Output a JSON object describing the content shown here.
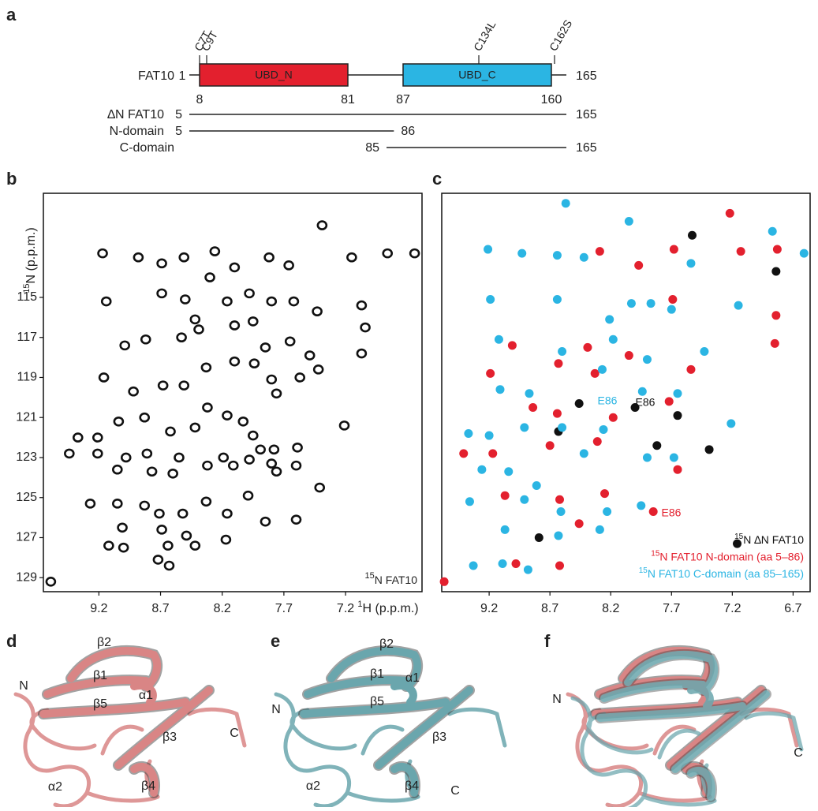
{
  "panel_labels": [
    "a",
    "b",
    "c",
    "d",
    "e",
    "f"
  ],
  "domain_map": {
    "protein": "FAT10",
    "start": 1,
    "end": 165,
    "mutations": [
      "C7T",
      "C9T",
      "C134L",
      "C162S"
    ],
    "domains": [
      {
        "name": "UBD_N",
        "start": 8,
        "end": 81,
        "color": "#e3202e"
      },
      {
        "name": "UBD_C",
        "start": 87,
        "end": 160,
        "color": "#2bb5e3"
      }
    ],
    "constructs": [
      {
        "name": "∆N FAT10",
        "start": 5,
        "end": 165
      },
      {
        "name": "N-domain",
        "start": 5,
        "end": 86
      },
      {
        "name": "C-domain",
        "start": 85,
        "end": 165
      }
    ]
  },
  "chart_data": [
    {
      "type": "scatter",
      "color": "#111111",
      "annotation": {
        "sup": "15",
        "text": "N FAT10"
      },
      "x_label": {
        "sup": "1",
        "text": "H (p.p.m.)"
      },
      "y_label": {
        "sup": "15",
        "text": "N (p.p.m.)"
      },
      "xlim": [
        9.65,
        6.58
      ],
      "ylim": [
        129.7,
        109.8
      ],
      "xticks": [
        9.2,
        8.7,
        8.2,
        7.7,
        7.2
      ],
      "yticks": [
        115,
        117,
        119,
        121,
        123,
        125,
        127,
        129
      ],
      "x": [
        9.17,
        8.88,
        8.69,
        8.51,
        8.26,
        8.1,
        7.82,
        7.66,
        7.39,
        7.15,
        6.86,
        6.64,
        9.14,
        8.69,
        8.5,
        8.3,
        8.42,
        8.16,
        7.98,
        7.8,
        7.62,
        7.43,
        7.07,
        7.04,
        8.99,
        8.82,
        8.53,
        8.39,
        8.1,
        7.95,
        7.85,
        7.65,
        7.49,
        7.07,
        9.16,
        8.92,
        8.68,
        8.51,
        8.33,
        8.1,
        7.94,
        7.8,
        7.76,
        7.57,
        7.42,
        7.21,
        9.37,
        9.21,
        9.04,
        8.83,
        8.62,
        8.42,
        8.32,
        8.16,
        8.03,
        7.95,
        7.89,
        7.78,
        9.44,
        9.21,
        8.98,
        8.81,
        8.55,
        8.19,
        7.98,
        7.8,
        7.59,
        9.05,
        8.77,
        8.6,
        8.32,
        8.11,
        7.76,
        7.6,
        9.27,
        9.05,
        8.83,
        8.71,
        8.52,
        8.33,
        8.16,
        7.99,
        7.85,
        7.6,
        7.41,
        9.01,
        8.69,
        8.49,
        8.17,
        9.12,
        9.0,
        8.64,
        8.42,
        8.72,
        8.63,
        9.59
      ],
      "values": [
        112.8,
        113.0,
        113.3,
        113.0,
        112.7,
        113.5,
        113.0,
        113.4,
        111.4,
        113.0,
        112.8,
        112.8,
        115.2,
        114.8,
        115.1,
        114.0,
        116.1,
        115.2,
        114.8,
        115.2,
        115.2,
        115.7,
        115.4,
        116.5,
        117.4,
        117.1,
        117.0,
        116.6,
        116.4,
        116.2,
        117.5,
        117.2,
        117.9,
        117.8,
        119.0,
        119.7,
        119.4,
        119.4,
        118.5,
        118.2,
        118.3,
        119.1,
        119.8,
        119.0,
        118.6,
        121.4,
        122.0,
        122.0,
        121.2,
        121.0,
        121.7,
        121.5,
        120.5,
        120.9,
        121.2,
        121.9,
        122.6,
        122.6,
        122.8,
        122.8,
        123.0,
        122.8,
        123.0,
        123.0,
        123.1,
        123.3,
        122.5,
        123.6,
        123.7,
        123.8,
        123.4,
        123.4,
        123.7,
        123.4,
        125.3,
        125.3,
        125.4,
        125.8,
        125.8,
        125.2,
        125.8,
        124.9,
        126.2,
        126.1,
        124.5,
        126.5,
        126.6,
        126.9,
        127.1,
        127.4,
        127.5,
        127.4,
        127.4,
        128.1,
        128.4,
        129.2
      ]
    },
    {
      "type": "scatter",
      "xlim": [
        9.59,
        6.56
      ],
      "ylim": [
        129.7,
        109.8
      ],
      "xticks": [
        9.2,
        8.7,
        8.2,
        7.7,
        7.2,
        6.7
      ],
      "annotations": [
        {
          "text": "E86",
          "color": "#2bb5e3"
        },
        {
          "text": "E86",
          "color": "#111111"
        },
        {
          "text": "E86",
          "color": "#e3202e"
        }
      ],
      "series": [
        {
          "isotope": "15",
          "name": "N ∆N FAT10",
          "color": "#111111",
          "x": [
            8.0,
            8.46,
            8.63,
            8.79,
            7.65,
            7.82,
            7.39,
            7.16,
            6.84,
            7.53
          ],
          "values": [
            120.5,
            120.3,
            121.7,
            127.0,
            120.9,
            122.4,
            122.6,
            127.3,
            113.7,
            111.9
          ]
        },
        {
          "isotope": "15",
          "name": "N FAT10 N-domain (aa 5–86)",
          "color": "#e3202e",
          "x": [
            7.22,
            7.68,
            7.13,
            6.83,
            8.29,
            7.97,
            7.69,
            6.84,
            9.01,
            8.39,
            8.05,
            6.85,
            9.19,
            8.63,
            8.33,
            7.54,
            8.84,
            8.64,
            8.18,
            7.72,
            9.41,
            9.17,
            8.7,
            8.31,
            7.65,
            9.07,
            8.62,
            8.25,
            7.85,
            8.46,
            8.98,
            8.62,
            9.57
          ],
          "values": [
            110.8,
            112.6,
            112.7,
            112.6,
            112.7,
            113.4,
            115.1,
            115.9,
            117.4,
            117.5,
            117.9,
            117.3,
            118.8,
            118.3,
            118.8,
            118.6,
            120.5,
            120.8,
            121.0,
            120.2,
            122.8,
            122.8,
            122.4,
            122.2,
            123.6,
            124.9,
            125.1,
            124.8,
            125.7,
            126.3,
            128.3,
            128.4,
            129.2
          ]
        },
        {
          "isotope": "15",
          "name": "N FAT10 C-domain (aa 85–165)",
          "color": "#2bb5e3",
          "x": [
            8.57,
            9.21,
            8.93,
            8.64,
            8.42,
            8.05,
            7.54,
            6.87,
            6.61,
            9.19,
            8.64,
            8.21,
            8.03,
            7.87,
            7.7,
            7.15,
            9.12,
            8.6,
            8.18,
            7.9,
            7.43,
            9.11,
            8.87,
            8.27,
            7.94,
            7.65,
            7.21,
            9.37,
            9.2,
            8.91,
            8.6,
            8.26,
            9.26,
            9.04,
            8.81,
            8.42,
            7.9,
            7.68,
            9.36,
            8.91,
            8.61,
            8.23,
            7.95,
            9.07,
            8.63,
            9.33,
            9.09,
            8.88,
            8.29
          ],
          "values": [
            110.3,
            112.6,
            112.8,
            112.9,
            113.0,
            111.2,
            113.3,
            111.7,
            112.8,
            115.1,
            115.1,
            116.1,
            115.3,
            115.3,
            115.6,
            115.4,
            117.1,
            117.7,
            117.1,
            118.1,
            117.7,
            119.6,
            119.8,
            118.6,
            119.7,
            119.8,
            121.3,
            121.8,
            121.9,
            121.5,
            121.5,
            121.6,
            123.6,
            123.7,
            124.4,
            122.8,
            123.0,
            123.0,
            125.2,
            125.1,
            125.7,
            125.7,
            125.4,
            126.6,
            126.9,
            128.4,
            128.3,
            128.6,
            126.6
          ]
        }
      ]
    }
  ],
  "structures": [
    {
      "labels": [
        "N",
        "β2",
        "β1",
        "α1",
        "β5",
        "β3",
        "C",
        "α2",
        "β4"
      ]
    },
    {
      "labels": [
        "N",
        "β2",
        "β1",
        "α1",
        "β5",
        "β3",
        "α2",
        "β4",
        "C"
      ]
    },
    {
      "labels": [
        "N",
        "C"
      ]
    }
  ]
}
